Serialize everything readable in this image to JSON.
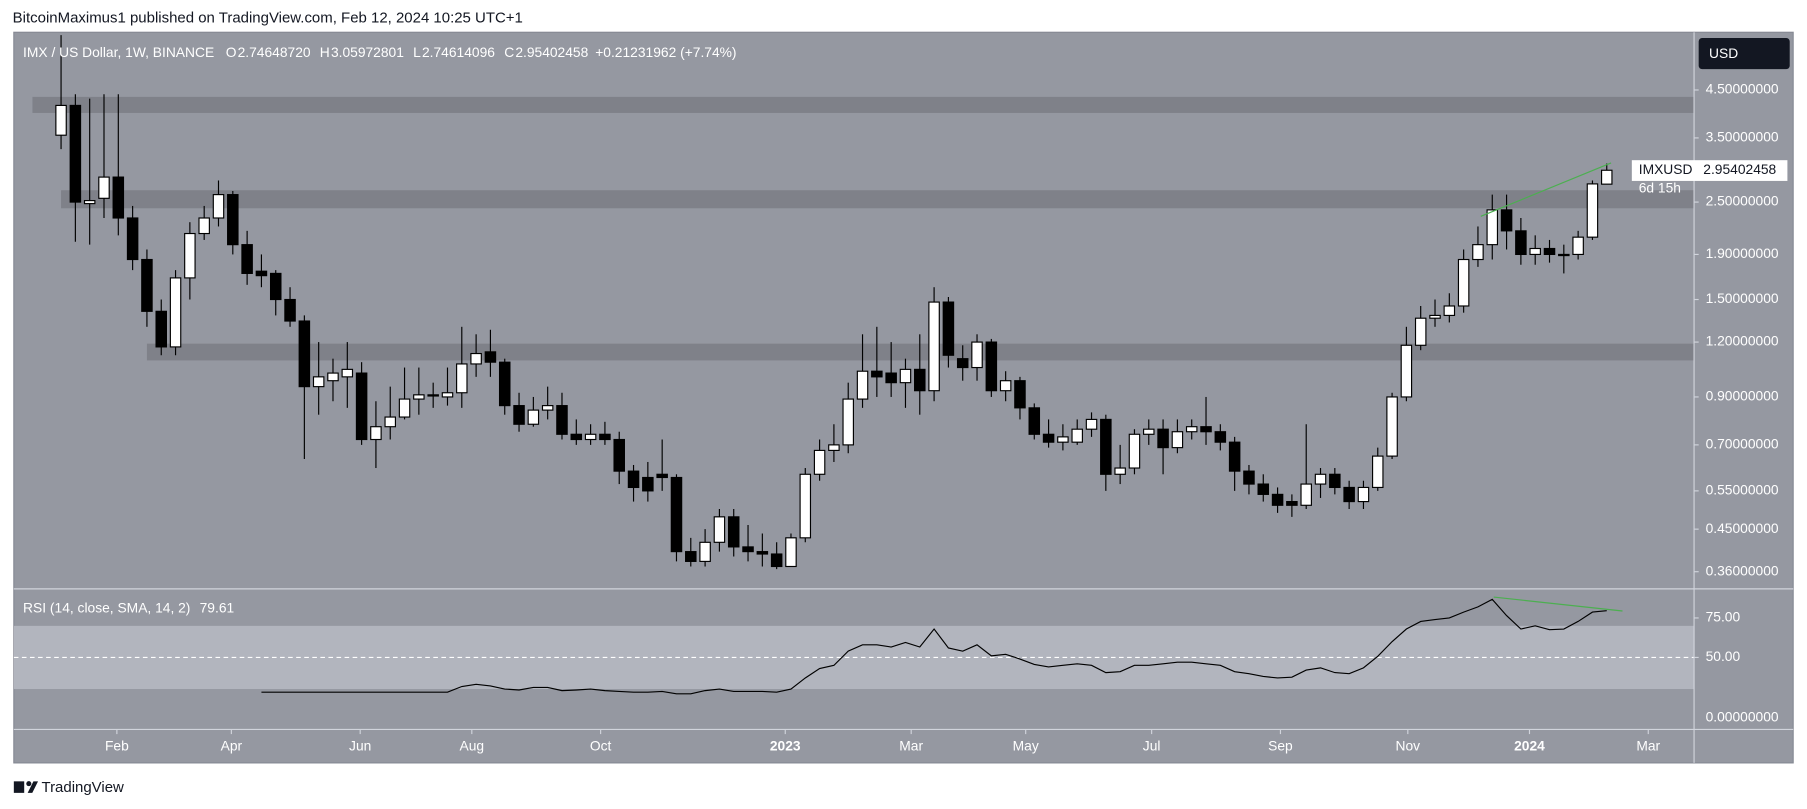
{
  "header": {
    "published": "BitcoinMaximus1 published on TradingView.com, Feb 12, 2024 10:25 UTC+1",
    "footer": "TradingView",
    "currency_button": "USD"
  },
  "chart_data": [
    {
      "type": "candlestick",
      "title": "IMX / US Dollar, 1W, BINANCE",
      "ohlc_legend": [
        {
          "key": "O",
          "value": "2.74648720"
        },
        {
          "key": "H",
          "value": "3.05972801"
        },
        {
          "key": "L",
          "value": "2.74614096"
        },
        {
          "key": "C",
          "value": "2.95402458"
        }
      ],
      "change": "+0.21231962 (+7.74%)",
      "symbol_label": "IMXUSD",
      "countdown": "6d 15h",
      "x": [
        0,
        1,
        2,
        3,
        4,
        5,
        6,
        7,
        8,
        9,
        10,
        11,
        12,
        13,
        14,
        15,
        16,
        17,
        18,
        19,
        20,
        21,
        22,
        23,
        24,
        25,
        26,
        27,
        28,
        29,
        30,
        31,
        32,
        33,
        34,
        35,
        36,
        37,
        38,
        39,
        40,
        41,
        42,
        43,
        44,
        45,
        46,
        47,
        48,
        49,
        50,
        51,
        52,
        53,
        54,
        55,
        56,
        57,
        58,
        59,
        60,
        61,
        62,
        63,
        64,
        65,
        66,
        67,
        68,
        69,
        70,
        71,
        72,
        73,
        74,
        75,
        76,
        77,
        78,
        79,
        80,
        81,
        82,
        83,
        84,
        85,
        86,
        87,
        88,
        89,
        90,
        91,
        92,
        93,
        94,
        95,
        96,
        97,
        98,
        99,
        100,
        101,
        102,
        103,
        104,
        105,
        106,
        107,
        108
      ],
      "open": [
        3.55,
        4.15,
        2.48,
        2.55,
        2.85,
        2.3,
        1.85,
        1.41,
        1.17,
        1.68,
        2.12,
        2.3,
        2.6,
        2.0,
        1.74,
        1.72,
        1.5,
        1.34,
        0.95,
        0.98,
        1.0,
        1.02,
        0.72,
        0.77,
        0.81,
        0.89,
        0.91,
        0.9,
        0.92,
        1.07,
        1.14,
        1.08,
        0.86,
        0.78,
        0.84,
        0.86,
        0.74,
        0.72,
        0.74,
        0.72,
        0.61,
        0.59,
        0.6,
        0.59,
        0.4,
        0.38,
        0.42,
        0.48,
        0.41,
        0.4,
        0.395,
        0.37,
        0.43,
        0.6,
        0.68,
        0.7,
        0.89,
        1.03,
        1.02,
        0.97,
        1.04,
        0.93,
        1.48,
        1.1,
        1.05,
        1.2,
        0.93,
        0.98,
        0.85,
        0.74,
        0.71,
        0.71,
        0.76,
        0.8,
        0.6,
        0.62,
        0.74,
        0.76,
        0.69,
        0.75,
        0.77,
        0.75,
        0.71,
        0.61,
        0.57,
        0.54,
        0.52,
        0.51,
        0.57,
        0.6,
        0.56,
        0.52,
        0.56,
        0.66,
        0.9,
        1.18,
        1.36,
        1.38,
        1.45,
        1.85,
        2.0,
        2.4,
        2.15,
        1.9,
        1.96,
        1.9,
        1.9,
        2.08,
        2.7464872
      ],
      "high": [
        6.0,
        4.4,
        4.3,
        4.4,
        4.4,
        2.45,
        1.95,
        1.5,
        1.75,
        2.25,
        2.45,
        2.8,
        2.65,
        2.15,
        1.9,
        1.75,
        1.6,
        1.38,
        1.2,
        1.1,
        1.2,
        1.08,
        0.88,
        0.95,
        1.05,
        1.05,
        0.97,
        1.05,
        1.3,
        1.25,
        1.28,
        1.1,
        0.92,
        0.9,
        0.95,
        0.92,
        0.8,
        0.78,
        0.79,
        0.75,
        0.63,
        0.64,
        0.72,
        0.6,
        0.43,
        0.45,
        0.5,
        0.5,
        0.46,
        0.44,
        0.42,
        0.44,
        0.62,
        0.72,
        0.78,
        0.97,
        1.25,
        1.3,
        1.2,
        1.1,
        1.25,
        1.6,
        1.52,
        1.18,
        1.25,
        1.22,
        1.03,
        1.0,
        0.87,
        0.8,
        0.78,
        0.8,
        0.83,
        0.82,
        0.7,
        0.76,
        0.8,
        0.8,
        0.8,
        0.8,
        0.9,
        0.78,
        0.73,
        0.63,
        0.6,
        0.56,
        0.54,
        0.78,
        0.62,
        0.62,
        0.58,
        0.58,
        0.69,
        0.92,
        1.3,
        1.45,
        1.5,
        1.55,
        1.95,
        2.2,
        2.6,
        2.6,
        2.3,
        2.1,
        2.05,
        2.0,
        2.15,
        2.8,
        3.05972801
      ],
      "low": [
        3.3,
        2.03,
        2.0,
        2.3,
        2.1,
        1.75,
        1.3,
        1.12,
        1.12,
        1.5,
        2.05,
        2.2,
        1.9,
        1.62,
        1.6,
        1.38,
        1.3,
        0.65,
        0.82,
        0.88,
        0.85,
        0.7,
        0.62,
        0.72,
        0.8,
        0.82,
        0.85,
        0.86,
        0.85,
        1.0,
        1.0,
        0.82,
        0.75,
        0.77,
        0.8,
        0.72,
        0.7,
        0.7,
        0.7,
        0.57,
        0.52,
        0.52,
        0.55,
        0.38,
        0.37,
        0.37,
        0.4,
        0.39,
        0.38,
        0.37,
        0.365,
        0.37,
        0.42,
        0.58,
        0.64,
        0.67,
        0.85,
        0.9,
        0.9,
        0.85,
        0.82,
        0.88,
        1.05,
        0.98,
        0.98,
        0.9,
        0.88,
        0.8,
        0.72,
        0.69,
        0.68,
        0.7,
        0.73,
        0.55,
        0.57,
        0.6,
        0.7,
        0.6,
        0.67,
        0.72,
        0.7,
        0.68,
        0.55,
        0.54,
        0.52,
        0.49,
        0.48,
        0.5,
        0.53,
        0.54,
        0.5,
        0.5,
        0.55,
        0.65,
        0.88,
        1.15,
        1.3,
        1.33,
        1.4,
        1.78,
        1.85,
        1.95,
        1.8,
        1.8,
        1.82,
        1.72,
        1.85,
        2.05,
        2.74614096
      ],
      "close": [
        4.15,
        2.5,
        2.52,
        2.85,
        2.3,
        1.85,
        1.41,
        1.17,
        1.68,
        2.12,
        2.3,
        2.6,
        2.0,
        1.72,
        1.7,
        1.5,
        1.34,
        0.95,
        1.0,
        1.02,
        1.04,
        0.72,
        0.77,
        0.81,
        0.89,
        0.91,
        0.91,
        0.92,
        1.07,
        1.13,
        1.08,
        0.86,
        0.78,
        0.84,
        0.86,
        0.74,
        0.72,
        0.74,
        0.72,
        0.61,
        0.56,
        0.55,
        0.59,
        0.4,
        0.38,
        0.42,
        0.48,
        0.41,
        0.4,
        0.395,
        0.37,
        0.43,
        0.6,
        0.68,
        0.7,
        0.89,
        1.03,
        1.0,
        0.97,
        1.04,
        0.93,
        1.48,
        1.12,
        1.05,
        1.2,
        0.93,
        0.98,
        0.85,
        0.74,
        0.71,
        0.73,
        0.76,
        0.8,
        0.6,
        0.62,
        0.74,
        0.76,
        0.69,
        0.75,
        0.77,
        0.75,
        0.71,
        0.61,
        0.57,
        0.54,
        0.51,
        0.51,
        0.57,
        0.6,
        0.56,
        0.52,
        0.56,
        0.66,
        0.9,
        1.18,
        1.36,
        1.38,
        1.45,
        1.85,
        2.0,
        2.4,
        2.15,
        1.9,
        1.96,
        1.9,
        1.9,
        2.08,
        2.75,
        2.95402458
      ],
      "up_color": "#ffffff",
      "down_color": "#000000",
      "wick_color": "#000000",
      "log_scale": true,
      "grid": false,
      "xlim": [
        -3.3,
        114.1
      ],
      "ylim": [
        0.329,
        6.09
      ],
      "yticks": [
        {
          "value": 0.36,
          "label": "0.36000000"
        },
        {
          "value": 0.45,
          "label": "0.45000000"
        },
        {
          "value": 0.55,
          "label": "0.55000000"
        },
        {
          "value": 0.7,
          "label": "0.70000000"
        },
        {
          "value": 0.9,
          "label": "0.90000000"
        },
        {
          "value": 1.2,
          "label": "1.20000000"
        },
        {
          "value": 1.5,
          "label": "1.50000000"
        },
        {
          "value": 1.9,
          "label": "1.90000000"
        },
        {
          "value": 2.5,
          "label": "2.50000000"
        },
        {
          "value": 3.5,
          "label": "3.50000000"
        },
        {
          "value": 4.5,
          "label": "4.50000000"
        }
      ],
      "xticks": [
        {
          "value": 3.9,
          "label": "Feb"
        },
        {
          "value": 11.9,
          "label": "Apr"
        },
        {
          "value": 20.9,
          "label": "Jun"
        },
        {
          "value": 28.7,
          "label": "Aug"
        },
        {
          "value": 37.7,
          "label": "Oct"
        },
        {
          "value": 50.6,
          "label": "2023"
        },
        {
          "value": 59.4,
          "label": "Mar"
        },
        {
          "value": 67.4,
          "label": "May"
        },
        {
          "value": 76.2,
          "label": "Jul"
        },
        {
          "value": 85.2,
          "label": "Sep"
        },
        {
          "value": 94.1,
          "label": "Nov"
        },
        {
          "value": 102.6,
          "label": "2024"
        },
        {
          "value": 110.9,
          "label": "Mar"
        }
      ],
      "zones": [
        {
          "x_start": -2,
          "low": 3.99,
          "high": 4.34
        },
        {
          "x_start": 0,
          "low": 2.42,
          "high": 2.66
        },
        {
          "x_start": 6,
          "low": 1.09,
          "high": 1.19
        }
      ],
      "zone_color": "#7f8189",
      "trend_line": {
        "x": [
          99.2,
          108.3
        ],
        "y": [
          2.32,
          3.07
        ],
        "color": "#4caf50"
      }
    },
    {
      "type": "line",
      "title": "RSI (14, close, SMA, 14, 2)",
      "values": [
        null,
        null,
        null,
        null,
        null,
        null,
        null,
        null,
        null,
        null,
        null,
        null,
        null,
        null,
        28,
        28,
        28,
        28,
        28,
        28,
        28,
        28,
        28,
        28,
        28,
        28,
        28,
        28,
        31.6,
        33,
        32,
        30,
        29.4,
        31,
        31,
        29,
        29.4,
        30,
        29,
        28.5,
        28,
        28,
        28.5,
        27,
        27,
        29,
        30,
        28.5,
        28.5,
        28.5,
        28,
        30,
        37,
        43,
        45,
        54,
        58,
        58,
        56.6,
        59.5,
        56.6,
        68,
        56,
        54,
        58,
        51,
        52,
        49,
        45.6,
        44,
        45,
        46,
        45,
        40.4,
        41,
        45,
        45,
        46,
        47,
        47,
        46,
        45,
        41,
        39.7,
        38,
        37,
        37.5,
        42,
        43.4,
        40.4,
        39.7,
        43.4,
        50.7,
        60,
        68,
        72.8,
        74,
        75,
        78.7,
        82,
        86.8,
        76.5,
        68,
        70,
        67.6,
        68,
        72.8,
        78.7,
        79.61
      ],
      "color": "#000000",
      "ylim": [
        4.4,
        93.4
      ],
      "yticks": [
        {
          "value": 50,
          "label": "50.00"
        },
        {
          "value": 75,
          "label": "75.00"
        }
      ],
      "bottom_label": "0.00000000",
      "band": [
        30,
        70
      ],
      "band_color": "#b2b5be",
      "midline": 50,
      "trend_line": {
        "x": [
          100.1,
          109.1
        ],
        "y": [
          88.2,
          79.4
        ],
        "color": "#4caf50"
      }
    }
  ]
}
